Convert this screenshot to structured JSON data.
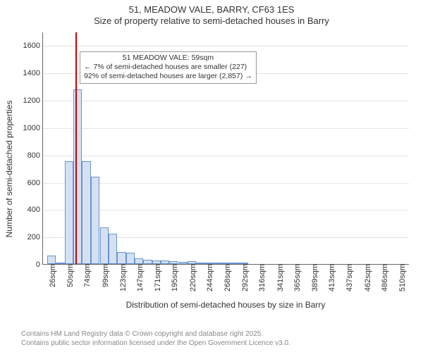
{
  "title": {
    "line1": "51, MEADOW VALE, BARRY, CF63 1ES",
    "line2": "Size of property relative to semi-detached houses in Barry"
  },
  "chart": {
    "type": "histogram",
    "background_color": "#ffffff",
    "grid_color": "#e4e4e4",
    "axis_color": "#666666",
    "bar_fill": "#d5e1f2",
    "bar_border": "#6893d4",
    "ref_line_color": "#cc0000",
    "ref_line_x": 59,
    "xlim": [
      14,
      522
    ],
    "ylim": [
      0,
      1700
    ],
    "ytick_step": 200,
    "ylabel": "Number of semi-detached properties",
    "xlabel": "Distribution of semi-detached houses by size in Barry",
    "bin_width": 12,
    "bins": [
      {
        "x": 26,
        "count": 60
      },
      {
        "x": 38,
        "count": 5
      },
      {
        "x": 50,
        "count": 750
      },
      {
        "x": 62,
        "count": 1280
      },
      {
        "x": 74,
        "count": 750
      },
      {
        "x": 86,
        "count": 640
      },
      {
        "x": 99,
        "count": 270
      },
      {
        "x": 111,
        "count": 220
      },
      {
        "x": 123,
        "count": 90
      },
      {
        "x": 135,
        "count": 80
      },
      {
        "x": 147,
        "count": 40
      },
      {
        "x": 159,
        "count": 30
      },
      {
        "x": 171,
        "count": 25
      },
      {
        "x": 183,
        "count": 25
      },
      {
        "x": 195,
        "count": 20
      },
      {
        "x": 208,
        "count": 15
      },
      {
        "x": 220,
        "count": 20
      },
      {
        "x": 232,
        "count": 8
      },
      {
        "x": 244,
        "count": 6
      },
      {
        "x": 256,
        "count": 4
      },
      {
        "x": 268,
        "count": 10
      },
      {
        "x": 280,
        "count": 3
      },
      {
        "x": 292,
        "count": 2
      }
    ],
    "xticks": [
      {
        "x": 26,
        "label": "26sqm"
      },
      {
        "x": 50,
        "label": "50sqm"
      },
      {
        "x": 74,
        "label": "74sqm"
      },
      {
        "x": 99,
        "label": "99sqm"
      },
      {
        "x": 123,
        "label": "123sqm"
      },
      {
        "x": 147,
        "label": "147sqm"
      },
      {
        "x": 171,
        "label": "171sqm"
      },
      {
        "x": 195,
        "label": "195sqm"
      },
      {
        "x": 220,
        "label": "220sqm"
      },
      {
        "x": 244,
        "label": "244sqm"
      },
      {
        "x": 268,
        "label": "268sqm"
      },
      {
        "x": 292,
        "label": "292sqm"
      },
      {
        "x": 316,
        "label": "316sqm"
      },
      {
        "x": 341,
        "label": "341sqm"
      },
      {
        "x": 365,
        "label": "365sqm"
      },
      {
        "x": 389,
        "label": "389sqm"
      },
      {
        "x": 413,
        "label": "413sqm"
      },
      {
        "x": 437,
        "label": "437sqm"
      },
      {
        "x": 462,
        "label": "462sqm"
      },
      {
        "x": 486,
        "label": "486sqm"
      },
      {
        "x": 510,
        "label": "510sqm"
      }
    ],
    "annotation": {
      "line1": "51 MEADOW VALE: 59sqm",
      "line2": "← 7% of semi-detached houses are smaller (227)",
      "line3": "92% of semi-detached houses are larger (2,857) →"
    }
  },
  "footer": {
    "line1": "Contains HM Land Registry data © Crown copyright and database right 2025.",
    "line2": "Contains public sector information licensed under the Open Government Licence v3.0."
  }
}
